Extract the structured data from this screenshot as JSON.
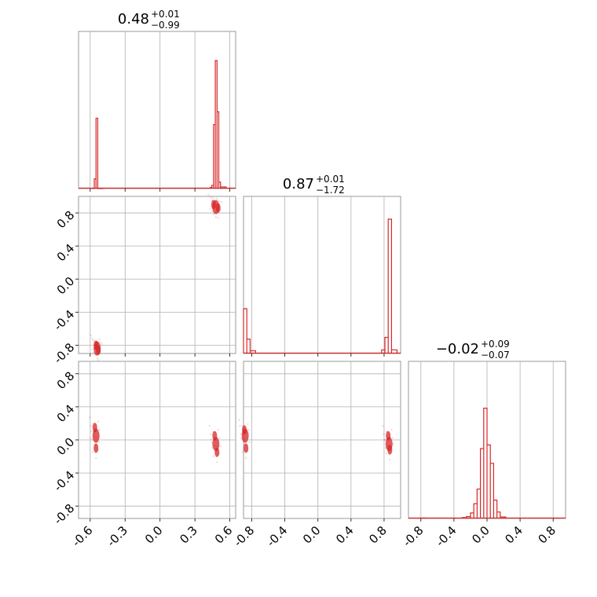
{
  "chart_data": {
    "type": "corner",
    "parameters": [
      {
        "range": [
          -0.7,
          0.65
        ],
        "xticks": [
          "-0.6",
          "-0.3",
          "0.0",
          "0.3",
          "0.6"
        ],
        "xtick_values": [
          -0.6,
          -0.3,
          0.0,
          0.3,
          0.6
        ],
        "title_value": "0.48",
        "title_plus": "+0.01",
        "title_minus": "−0.99"
      },
      {
        "range": [
          -0.9,
          1.0
        ],
        "xticks": [
          "-0.8",
          "-0.4",
          "0.0",
          "0.4",
          "0.8"
        ],
        "xtick_values": [
          -0.8,
          -0.4,
          0.0,
          0.4,
          0.8
        ],
        "yticks": [
          "-0.8",
          "-0.4",
          "0.0",
          "0.4",
          "0.8"
        ],
        "title_value": "0.87",
        "title_plus": "+0.01",
        "title_minus": "−1.72"
      },
      {
        "range": [
          -0.95,
          0.95
        ],
        "xticks": [
          "-0.8",
          "-0.4",
          "0.0",
          "0.4",
          "0.8"
        ],
        "xtick_values": [
          -0.8,
          -0.4,
          0.0,
          0.4,
          0.8
        ],
        "yticks": [
          "-0.8",
          "-0.4",
          "0.0",
          "0.4",
          "0.8"
        ],
        "title_value": "−0.02",
        "title_plus": "+0.09",
        "title_minus": "−0.07"
      }
    ],
    "histograms": [
      {
        "param": 0,
        "bins": [
          [
            -0.58,
            0.0
          ],
          [
            -0.565,
            0.03
          ],
          [
            -0.55,
            0.22
          ],
          [
            -0.535,
            0.0
          ],
          [
            0.43,
            0.003
          ],
          [
            0.445,
            0.01
          ],
          [
            0.46,
            0.2
          ],
          [
            0.475,
            0.4
          ],
          [
            0.49,
            0.24
          ],
          [
            0.505,
            0.02
          ],
          [
            0.52,
            0.005
          ]
        ]
      },
      {
        "param": 1,
        "bins": [
          [
            -0.9,
            0.25
          ],
          [
            -0.86,
            0.08
          ],
          [
            -0.82,
            0.015
          ],
          [
            0.77,
            0.02
          ],
          [
            0.81,
            0.09
          ],
          [
            0.85,
            0.75
          ],
          [
            0.89,
            0.02
          ]
        ]
      },
      {
        "param": 2,
        "bins": [
          [
            -0.8,
            0.002
          ],
          [
            -0.3,
            0.005
          ],
          [
            -0.25,
            0.01
          ],
          [
            -0.2,
            0.03
          ],
          [
            -0.16,
            0.08
          ],
          [
            -0.12,
            0.16
          ],
          [
            -0.08,
            0.38
          ],
          [
            -0.04,
            0.6
          ],
          [
            0.0,
            0.4
          ],
          [
            0.04,
            0.3
          ],
          [
            0.08,
            0.1
          ],
          [
            0.12,
            0.035
          ],
          [
            0.16,
            0.008
          ]
        ]
      }
    ],
    "clusters": [
      {
        "px": 0,
        "py": 1,
        "points": [
          [
            0.48,
            0.87
          ],
          [
            0.46,
            0.9
          ],
          [
            0.5,
            0.86
          ],
          [
            -0.54,
            -0.84
          ],
          [
            -0.55,
            -0.8
          ],
          [
            -0.53,
            -0.86
          ]
        ]
      },
      {
        "px": 0,
        "py": 2,
        "points": [
          [
            -0.55,
            0.05
          ],
          [
            -0.55,
            -0.1
          ],
          [
            -0.56,
            0.15
          ],
          [
            0.48,
            -0.05
          ],
          [
            0.47,
            0.05
          ],
          [
            0.49,
            -0.15
          ]
        ]
      },
      {
        "px": 1,
        "py": 2,
        "points": [
          [
            -0.88,
            0.05
          ],
          [
            -0.87,
            -0.1
          ],
          [
            -0.89,
            0.12
          ],
          [
            0.86,
            -0.05
          ],
          [
            0.85,
            0.05
          ],
          [
            0.87,
            -0.12
          ]
        ]
      }
    ],
    "color": "#d62728",
    "grid": true
  }
}
